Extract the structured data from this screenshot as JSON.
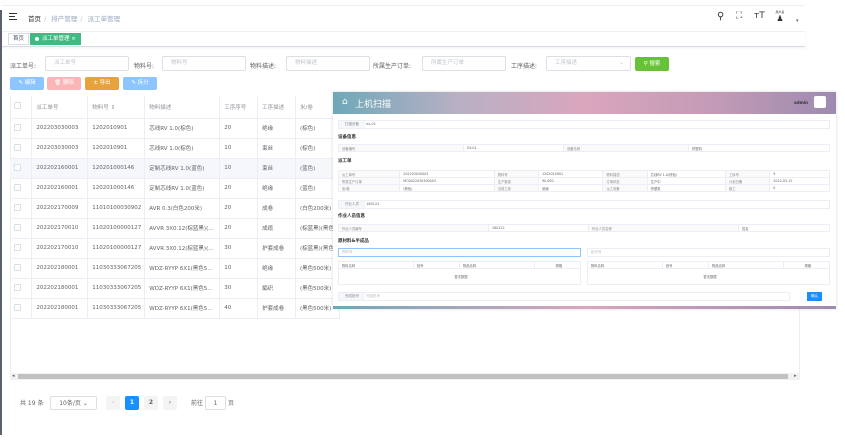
{
  "header": {
    "breadcrumb": [
      "首页",
      "排产管理",
      "派工单管理"
    ],
    "user_label": "用户名"
  },
  "tabs": [
    {
      "label": "首页"
    },
    {
      "label": "派工单管理 ×"
    }
  ],
  "filters": {
    "order_no": {
      "label": "派工单号:",
      "placeholder": "派工单号"
    },
    "material_no": {
      "label": "物料号:",
      "placeholder": "物料号"
    },
    "material_desc": {
      "label": "物料描述:",
      "placeholder": "物料描述"
    },
    "prod_order": {
      "label": "所属生产订单:",
      "placeholder": "所属生产订单"
    },
    "process_desc": {
      "label": "工序描述:",
      "placeholder": "工序描述"
    },
    "search_label": "搜索"
  },
  "toolbar": {
    "edit": "编辑",
    "delete": "删除",
    "export": "导出",
    "split": "拆分"
  },
  "colors": {
    "primary": "#1890ff",
    "success": "#67c23a",
    "tag": "#42b983",
    "warning": "#e6a23c",
    "danger_light": "#fab6b6",
    "primary_light": "#8cc5ff"
  },
  "table": {
    "columns": [
      "派工单号",
      "物料号",
      "物料描述",
      "工序序号",
      "工序描述",
      "米/卷"
    ],
    "rows": [
      [
        "202203030003",
        "1202010901",
        "芯线RV 1.0(棕色)",
        "20",
        "绝缘",
        "(棕色)"
      ],
      [
        "202203030003",
        "1202010901",
        "芯线RV 1.0(棕色)",
        "10",
        "束丝",
        "(棕色)"
      ],
      [
        "202202160001",
        "120201000146",
        "定制芯线RV 1.0(蓝色)",
        "10",
        "束丝",
        "(蓝色)"
      ],
      [
        "202202160001",
        "120201000146",
        "定制芯线RV 1.0(蓝色)",
        "20",
        "绝缘",
        "(蓝色)"
      ],
      [
        "202202170009",
        "11010100030902",
        "AVR 0.3(白色200米)",
        "20",
        "成卷",
        "(白色200米)"
      ],
      [
        "202202170010",
        "11020100000127",
        "AVVR 3X0.12(棕蓝黑)(...",
        "20",
        "成缆",
        "(棕蓝黑)(黑色"
      ],
      [
        "202202170010",
        "11020100000127",
        "AVVR 3X0.12(棕蓝黑)(...",
        "30",
        "护套成卷",
        "(棕蓝黑)(黑色"
      ],
      [
        "202202180001",
        "11030333067205",
        "WDZ-RYYP 6X1(黑色5...",
        "10",
        "绝缘",
        "(黑色500米)"
      ],
      [
        "202202180001",
        "11030333067205",
        "WDZ-RYYP 6X1(黑色5...",
        "30",
        "編织",
        "(黑色500米)"
      ],
      [
        "202202180001",
        "11030333067205",
        "WDZ-RYYP 6X1(黑色5...",
        "40",
        "护套成卷",
        "(黑色500米)"
      ]
    ]
  },
  "pagination": {
    "total": "共 19 条",
    "page_size": "10条/页",
    "pages": [
      "1",
      "2"
    ],
    "current": 1,
    "goto_label": "前往",
    "goto_value": "1",
    "page_unit": "页"
  },
  "modal": {
    "title": "上机扫描",
    "user": "admin",
    "scan": {
      "label": "扫描设备",
      "value": "ex-01"
    },
    "device_section": "设备信息",
    "device": {
      "no_label": "设备编号",
      "no": "EX-01",
      "name_label": "设备名称",
      "name": "挤塑机"
    },
    "order_section": "派工单",
    "order_grid": [
      [
        "派工单号",
        "202203030003",
        "物料号",
        "1202010901",
        "物料描述",
        "芯线RV 1.0(棕色)",
        "工序号",
        "9"
      ],
      [
        "所属生产订单",
        "MO0022030300003",
        "生产数量",
        "90,000",
        "订单状态",
        "生产中",
        "计划日期",
        "2022-03-15"
      ],
      [
        "米/卷",
        "(棕色)",
        "当前工序",
        "绝缘",
        "派工设备",
        "挤塑机",
        "报工",
        "0"
      ]
    ],
    "operator": {
      "label": "作业人员",
      "value": "180122"
    },
    "operator_section": "作业人员信息",
    "operator_info": [
      "作业人员编号",
      "180122",
      "作业人员名称",
      "姓名"
    ],
    "material_section": "原材料&半成品",
    "material_placeholder": "物料号",
    "semi_placeholder": "批次号",
    "mat_cols": [
      "物料名称",
      "批号",
      "物品名称",
      "规格"
    ],
    "no_data": "暂无数据",
    "finish": {
      "label": "完成批号",
      "placeholder": "完成批号"
    },
    "confirm": "确认"
  }
}
